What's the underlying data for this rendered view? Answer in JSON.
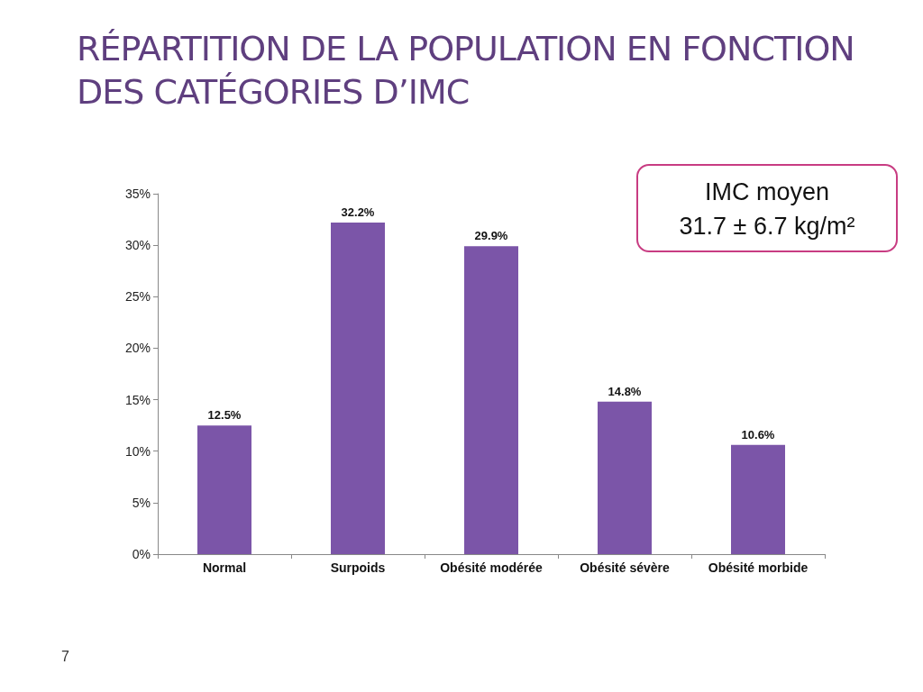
{
  "chart_data": {
    "type": "bar",
    "title": "RÉPARTITION DE LA POPULATION EN FONCTION DES CATÉGORIES D’IMC",
    "categories": [
      "Normal",
      "Surpoids",
      "Obésité modérée",
      "Obésité sévère",
      "Obésité morbide"
    ],
    "values": [
      12.5,
      32.2,
      29.9,
      14.8,
      10.6
    ],
    "value_labels": [
      "12.5%",
      "32.2%",
      "29.9%",
      "14.8%",
      "10.6%"
    ],
    "color": "#7b55a8",
    "ylim": [
      0,
      35
    ],
    "yticks": [
      {
        "value": 0,
        "label": "0%"
      },
      {
        "value": 5,
        "label": "5%"
      },
      {
        "value": 10,
        "label": "10%"
      },
      {
        "value": 15,
        "label": "15%"
      },
      {
        "value": 20,
        "label": "20%"
      },
      {
        "value": 25,
        "label": "25%"
      },
      {
        "value": 30,
        "label": "30%"
      },
      {
        "value": 35,
        "label": "35%"
      }
    ],
    "grid": false,
    "annotations": [
      "IMC moyen",
      "31.7 ± 6.7 kg/m²",
      "7"
    ]
  }
}
